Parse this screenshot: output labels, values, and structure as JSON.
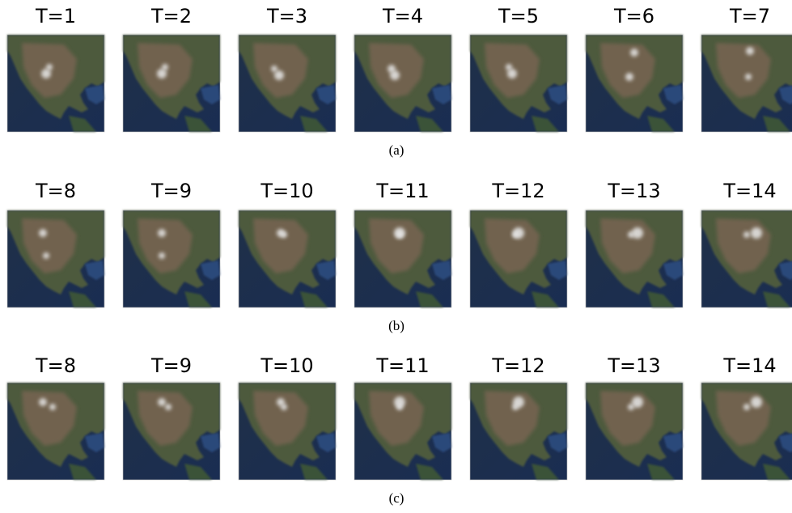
{
  "rows": [
    {
      "labels": [
        "T=1",
        "T=2",
        "T=3",
        "T=4",
        "T=5",
        "T=6",
        "T=7"
      ],
      "caption": "(a)"
    },
    {
      "labels": [
        "T=8",
        "T=9",
        "T=10",
        "T=11",
        "T=12",
        "T=13",
        "T=14"
      ],
      "caption": "(b)"
    },
    {
      "labels": [
        "T=8",
        "T=9",
        "T=10",
        "T=11",
        "T=12",
        "T=13",
        "T=14"
      ],
      "caption": "(c)"
    }
  ]
}
